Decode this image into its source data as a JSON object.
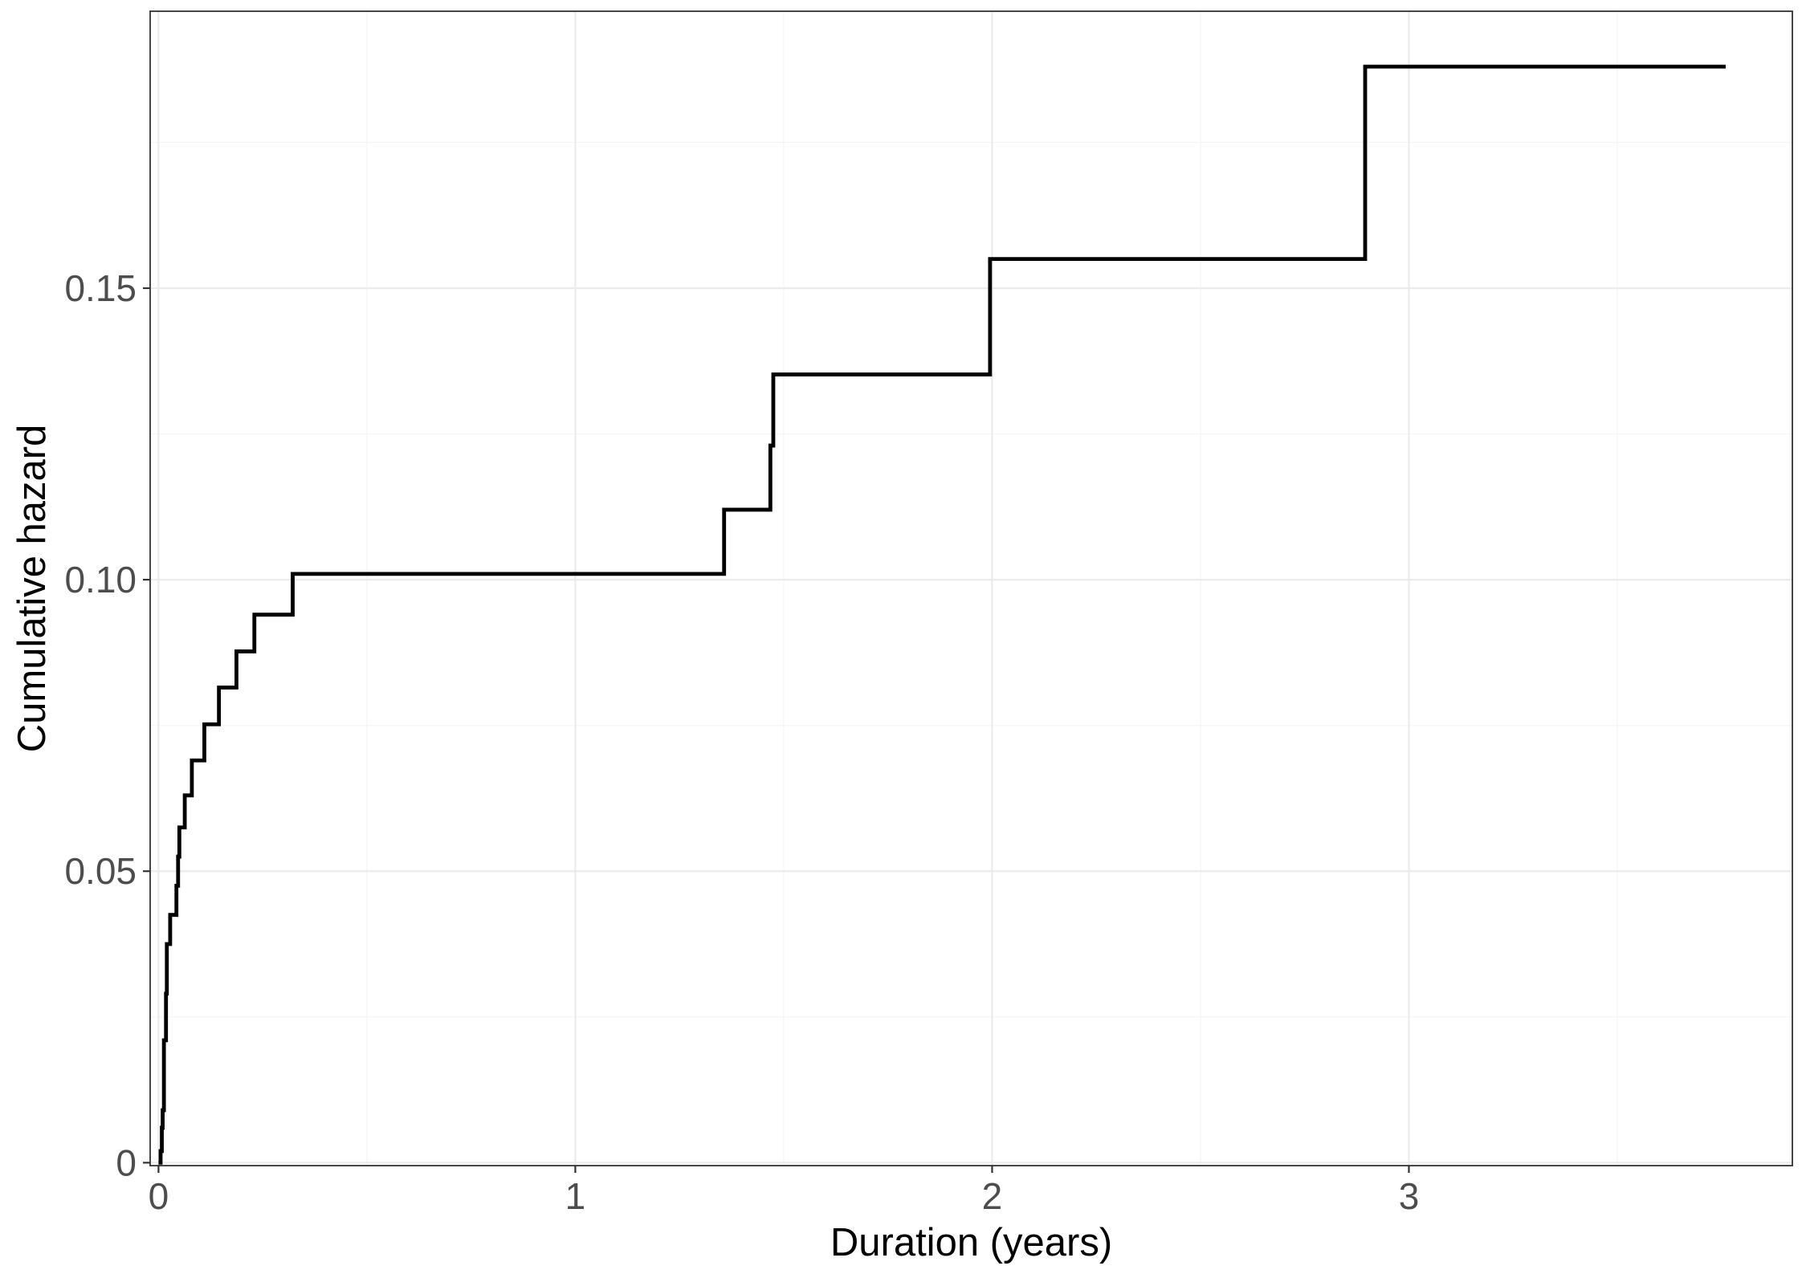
{
  "chart_data": {
    "type": "line",
    "subtype": "step",
    "title": "",
    "xlabel": "Duration (years)",
    "ylabel": "Cumulative hazard",
    "xlim": [
      -0.02,
      3.92
    ],
    "ylim": [
      -0.0005,
      0.1975
    ],
    "x_ticks": [
      {
        "value": 0,
        "label": "0"
      },
      {
        "value": 1,
        "label": "1"
      },
      {
        "value": 2,
        "label": "2"
      },
      {
        "value": 3,
        "label": "3"
      }
    ],
    "y_ticks": [
      {
        "value": 0,
        "label": "0"
      },
      {
        "value": 0.05,
        "label": "0.05"
      },
      {
        "value": 0.1,
        "label": "0.10"
      },
      {
        "value": 0.15,
        "label": "0.15"
      }
    ],
    "x_minor_ticks": [
      0.5,
      1.5,
      2.5,
      3.5
    ],
    "y_minor_ticks": [
      0.025,
      0.075,
      0.125,
      0.175
    ],
    "grid": true,
    "legend": "none",
    "line_color": "#000000",
    "series": [
      {
        "points": [
          {
            "x": 0.0,
            "y": 0.0
          },
          {
            "x": 0.005,
            "y": 0.002
          },
          {
            "x": 0.008,
            "y": 0.006
          },
          {
            "x": 0.01,
            "y": 0.009
          },
          {
            "x": 0.013,
            "y": 0.021
          },
          {
            "x": 0.018,
            "y": 0.029
          },
          {
            "x": 0.02,
            "y": 0.0375
          },
          {
            "x": 0.028,
            "y": 0.0425
          },
          {
            "x": 0.043,
            "y": 0.0475
          },
          {
            "x": 0.047,
            "y": 0.0525
          },
          {
            "x": 0.05,
            "y": 0.0575
          },
          {
            "x": 0.063,
            "y": 0.063
          },
          {
            "x": 0.08,
            "y": 0.069
          },
          {
            "x": 0.11,
            "y": 0.0752
          },
          {
            "x": 0.145,
            "y": 0.0815
          },
          {
            "x": 0.187,
            "y": 0.0877
          },
          {
            "x": 0.23,
            "y": 0.094
          },
          {
            "x": 0.322,
            "y": 0.101
          },
          {
            "x": 1.357,
            "y": 0.112
          },
          {
            "x": 1.468,
            "y": 0.123
          },
          {
            "x": 1.475,
            "y": 0.1352
          },
          {
            "x": 1.995,
            "y": 0.155
          },
          {
            "x": 2.895,
            "y": 0.188
          }
        ],
        "end_x": 3.76
      }
    ]
  }
}
